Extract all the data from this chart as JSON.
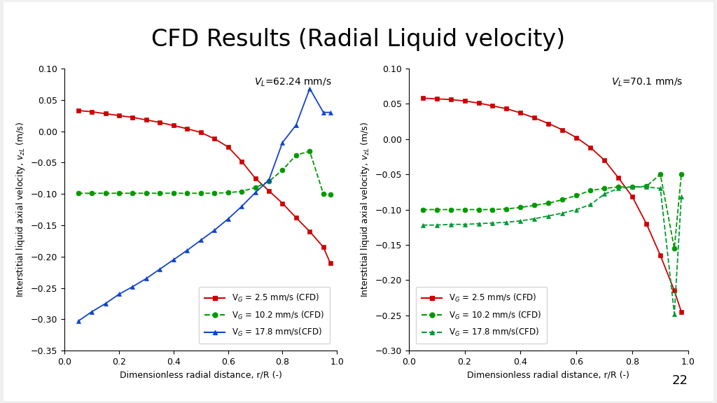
{
  "title": "CFD Results (Radial Liquid velocity)",
  "title_fontsize": 24,
  "background_color": "#f0f0f0",
  "panel_color": "#ffffff",
  "plot1_annotation": "V",
  "plot1_annotation_sub": "L",
  "plot1_annotation_val": "=62.24 mm/s",
  "plot2_annotation": "V",
  "plot2_annotation_sub": "L",
  "plot2_annotation_val": "=70.1 mm/s",
  "xlabel": "Dimensionless radial distance, r/R (-)",
  "ylabel": "Interstitial liquid axial velocity, v  (m/s)",
  "ylabel_sub": "zL",
  "legend1": [
    "V$_G$ = 2.5 mm/s (CFD)",
    "V$_G$ = 10.2 mm/s (CFD)",
    "V$_G$ = 17.8 mm/s(CFD)"
  ],
  "legend2": [
    "V$_G$ = 2.5 mm/s (CFD)",
    "V$_G$ = 10.2 mm/s (CFD)",
    "V$_G$ = 17.8 mm/s(CFD)"
  ],
  "red_color": "#cc0000",
  "green_color": "#009900",
  "blue_color": "#1144cc",
  "teal_color": "#009933",
  "plot1_red_x": [
    0.05,
    0.1,
    0.15,
    0.2,
    0.25,
    0.3,
    0.35,
    0.4,
    0.45,
    0.5,
    0.55,
    0.6,
    0.65,
    0.7,
    0.75,
    0.8,
    0.85,
    0.9,
    0.95,
    0.975
  ],
  "plot1_red_y": [
    0.033,
    0.031,
    0.028,
    0.025,
    0.022,
    0.018,
    0.014,
    0.009,
    0.004,
    -0.002,
    -0.012,
    -0.025,
    -0.048,
    -0.075,
    -0.095,
    -0.115,
    -0.138,
    -0.16,
    -0.185,
    -0.21
  ],
  "plot1_green_x": [
    0.05,
    0.1,
    0.15,
    0.2,
    0.25,
    0.3,
    0.35,
    0.4,
    0.45,
    0.5,
    0.55,
    0.6,
    0.65,
    0.7,
    0.75,
    0.8,
    0.85,
    0.9,
    0.95,
    0.975
  ],
  "plot1_green_y": [
    -0.099,
    -0.099,
    -0.099,
    -0.099,
    -0.099,
    -0.099,
    -0.099,
    -0.099,
    -0.099,
    -0.099,
    -0.099,
    -0.098,
    -0.096,
    -0.09,
    -0.08,
    -0.062,
    -0.038,
    -0.032,
    -0.1,
    -0.101
  ],
  "plot1_blue_x": [
    0.05,
    0.1,
    0.15,
    0.2,
    0.25,
    0.3,
    0.35,
    0.4,
    0.45,
    0.5,
    0.55,
    0.6,
    0.65,
    0.7,
    0.75,
    0.8,
    0.85,
    0.9,
    0.95,
    0.975
  ],
  "plot1_blue_y": [
    -0.303,
    -0.288,
    -0.275,
    -0.26,
    -0.248,
    -0.235,
    -0.22,
    -0.205,
    -0.19,
    -0.174,
    -0.158,
    -0.14,
    -0.12,
    -0.098,
    -0.078,
    -0.018,
    0.01,
    0.068,
    0.03,
    0.03
  ],
  "plot2_red_x": [
    0.05,
    0.1,
    0.15,
    0.2,
    0.25,
    0.3,
    0.35,
    0.4,
    0.45,
    0.5,
    0.55,
    0.6,
    0.65,
    0.7,
    0.75,
    0.8,
    0.85,
    0.9,
    0.95,
    0.975
  ],
  "plot2_red_y": [
    0.058,
    0.057,
    0.056,
    0.054,
    0.051,
    0.047,
    0.043,
    0.037,
    0.03,
    0.022,
    0.013,
    0.002,
    -0.012,
    -0.03,
    -0.055,
    -0.082,
    -0.12,
    -0.165,
    -0.215,
    -0.245
  ],
  "plot2_green_x": [
    0.05,
    0.1,
    0.15,
    0.2,
    0.25,
    0.3,
    0.35,
    0.4,
    0.45,
    0.5,
    0.55,
    0.6,
    0.65,
    0.7,
    0.75,
    0.8,
    0.85,
    0.9,
    0.95,
    0.975
  ],
  "plot2_green_y": [
    -0.1,
    -0.1,
    -0.1,
    -0.1,
    -0.1,
    -0.1,
    -0.099,
    -0.097,
    -0.094,
    -0.091,
    -0.086,
    -0.08,
    -0.073,
    -0.07,
    -0.068,
    -0.068,
    -0.067,
    -0.05,
    -0.155,
    -0.05
  ],
  "plot2_teal_x": [
    0.05,
    0.1,
    0.15,
    0.2,
    0.25,
    0.3,
    0.35,
    0.4,
    0.45,
    0.5,
    0.55,
    0.6,
    0.65,
    0.7,
    0.75,
    0.8,
    0.85,
    0.9,
    0.95,
    0.975
  ],
  "plot2_teal_y": [
    -0.122,
    -0.122,
    -0.121,
    -0.121,
    -0.12,
    -0.119,
    -0.118,
    -0.116,
    -0.113,
    -0.109,
    -0.105,
    -0.1,
    -0.093,
    -0.078,
    -0.07,
    -0.068,
    -0.068,
    -0.07,
    -0.248,
    -0.082
  ],
  "plot1_ylim": [
    -0.35,
    0.1
  ],
  "plot2_ylim": [
    -0.3,
    0.1
  ],
  "xlim": [
    0,
    1
  ],
  "page_number": "22"
}
